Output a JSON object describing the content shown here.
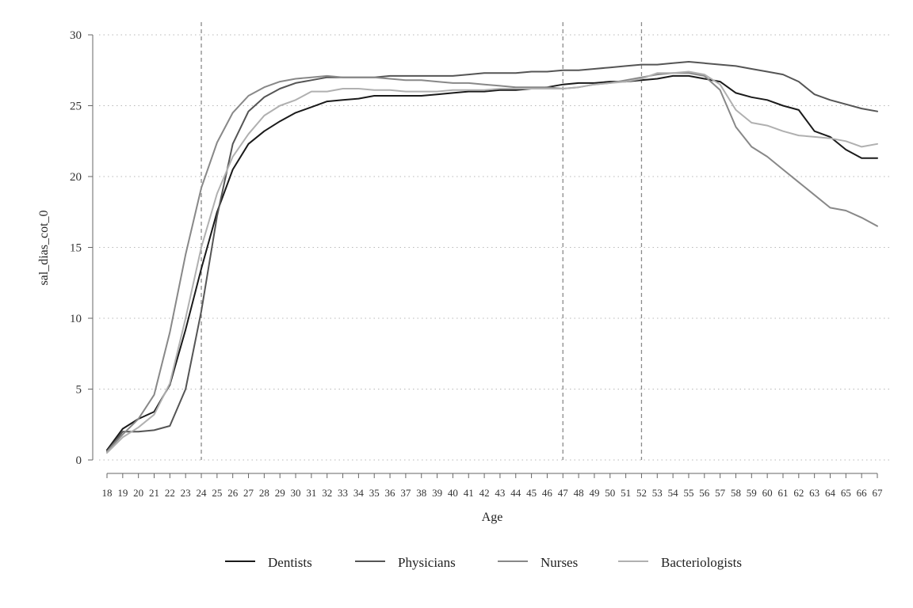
{
  "chart_data": {
    "type": "line",
    "title": "",
    "xlabel": "Age",
    "ylabel": "sal_dias_cot_0",
    "xlim": [
      18,
      67
    ],
    "ylim": [
      0,
      30
    ],
    "yticks": [
      0,
      5,
      10,
      15,
      20,
      25,
      30
    ],
    "grid": "horizontal dotted",
    "reference_lines_x": [
      24,
      47,
      52
    ],
    "legend": "bottom",
    "x": [
      18,
      19,
      20,
      21,
      22,
      23,
      24,
      25,
      26,
      27,
      28,
      29,
      30,
      31,
      32,
      33,
      34,
      35,
      36,
      37,
      38,
      39,
      40,
      41,
      42,
      43,
      44,
      45,
      46,
      47,
      48,
      49,
      50,
      51,
      52,
      53,
      54,
      55,
      56,
      57,
      58,
      59,
      60,
      61,
      62,
      63,
      64,
      65,
      66,
      67
    ],
    "series": [
      {
        "name": "Dentists",
        "color": "#1a1a1a",
        "values": [
          0.7,
          2.2,
          2.9,
          3.4,
          5.3,
          9.2,
          13.5,
          17.5,
          20.5,
          22.3,
          23.2,
          23.9,
          24.5,
          24.9,
          25.3,
          25.4,
          25.5,
          25.7,
          25.7,
          25.7,
          25.7,
          25.8,
          25.9,
          26.0,
          26.0,
          26.1,
          26.1,
          26.2,
          26.3,
          26.5,
          26.6,
          26.6,
          26.7,
          26.7,
          26.8,
          26.9,
          27.1,
          27.1,
          26.9,
          26.7,
          25.9,
          25.6,
          25.4,
          25.0,
          24.7,
          23.2,
          22.8,
          21.9,
          21.3,
          21.3
        ]
      },
      {
        "name": "Physicians",
        "color": "#555555",
        "values": [
          0.6,
          2.0,
          2.0,
          2.1,
          2.4,
          5.0,
          10.5,
          17.2,
          22.3,
          24.6,
          25.6,
          26.2,
          26.6,
          26.8,
          27.0,
          27.0,
          27.0,
          27.0,
          27.1,
          27.1,
          27.1,
          27.1,
          27.1,
          27.2,
          27.3,
          27.3,
          27.3,
          27.4,
          27.4,
          27.5,
          27.5,
          27.6,
          27.7,
          27.8,
          27.9,
          27.9,
          28.0,
          28.1,
          28.0,
          27.9,
          27.8,
          27.6,
          27.4,
          27.2,
          26.7,
          25.8,
          25.4,
          25.1,
          24.8,
          24.6
        ]
      },
      {
        "name": "Nurses",
        "color": "#888888",
        "values": [
          0.6,
          1.8,
          2.9,
          4.6,
          9.0,
          14.5,
          19.2,
          22.4,
          24.5,
          25.7,
          26.3,
          26.7,
          26.9,
          27.0,
          27.1,
          27.0,
          27.0,
          27.0,
          26.9,
          26.8,
          26.8,
          26.7,
          26.6,
          26.6,
          26.5,
          26.4,
          26.3,
          26.3,
          26.3,
          26.2,
          26.3,
          26.5,
          26.6,
          26.8,
          27.0,
          27.2,
          27.3,
          27.3,
          27.1,
          26.1,
          23.5,
          22.1,
          21.4,
          20.5,
          19.6,
          18.7,
          17.8,
          17.6,
          17.1,
          16.5
        ]
      },
      {
        "name": "Bacteriologists",
        "color": "#b0b0b0",
        "values": [
          0.5,
          1.6,
          2.3,
          3.2,
          5.4,
          10.0,
          15.0,
          18.8,
          21.4,
          23.0,
          24.3,
          25.0,
          25.4,
          26.0,
          26.0,
          26.2,
          26.2,
          26.1,
          26.1,
          26.0,
          26.0,
          26.0,
          26.1,
          26.1,
          26.1,
          26.2,
          26.2,
          26.2,
          26.2,
          26.2,
          26.3,
          26.5,
          26.6,
          26.7,
          26.9,
          27.3,
          27.3,
          27.4,
          27.2,
          26.5,
          24.7,
          23.8,
          23.6,
          23.2,
          22.9,
          22.8,
          22.7,
          22.5,
          22.1,
          22.3
        ]
      }
    ]
  }
}
